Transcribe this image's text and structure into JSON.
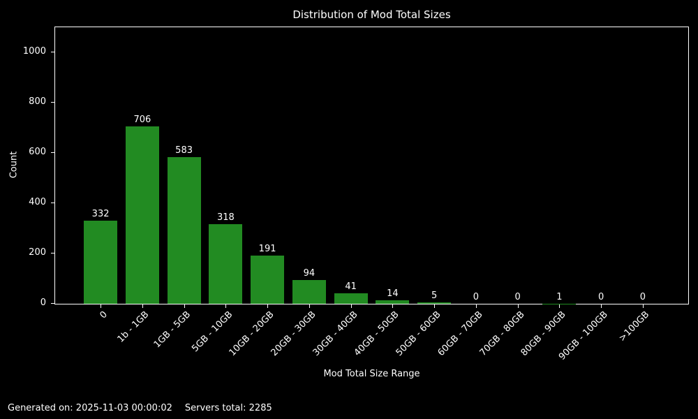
{
  "chart_data": {
    "type": "bar",
    "title": "Distribution of Mod Total Sizes",
    "xlabel": "Mod Total Size Range",
    "ylabel": "Count",
    "categories": [
      "0",
      "1b - 1GB",
      "1GB - 5GB",
      "5GB - 10GB",
      "10GB - 20GB",
      "20GB - 30GB",
      "30GB - 40GB",
      "40GB - 50GB",
      "50GB - 60GB",
      "60GB - 70GB",
      "70GB - 80GB",
      "80GB - 90GB",
      "90GB - 100GB",
      ">100GB"
    ],
    "values": [
      332,
      706,
      583,
      318,
      191,
      94,
      41,
      14,
      5,
      0,
      0,
      1,
      0,
      0
    ],
    "yticks": [
      0,
      200,
      400,
      600,
      800,
      1000
    ],
    "ylim": [
      0,
      1100
    ],
    "x_tick_rotation_deg": 45,
    "value_labels_shown": true,
    "grid": false,
    "legend": "none",
    "bar_color": "#228B22",
    "background_color": "#000000",
    "text_color": "#ffffff",
    "spine_color": "#ffffff"
  },
  "footer": {
    "generated_on": "Generated on: 2025-11-03 00:00:02",
    "servers_total": "Servers total: 2285"
  }
}
